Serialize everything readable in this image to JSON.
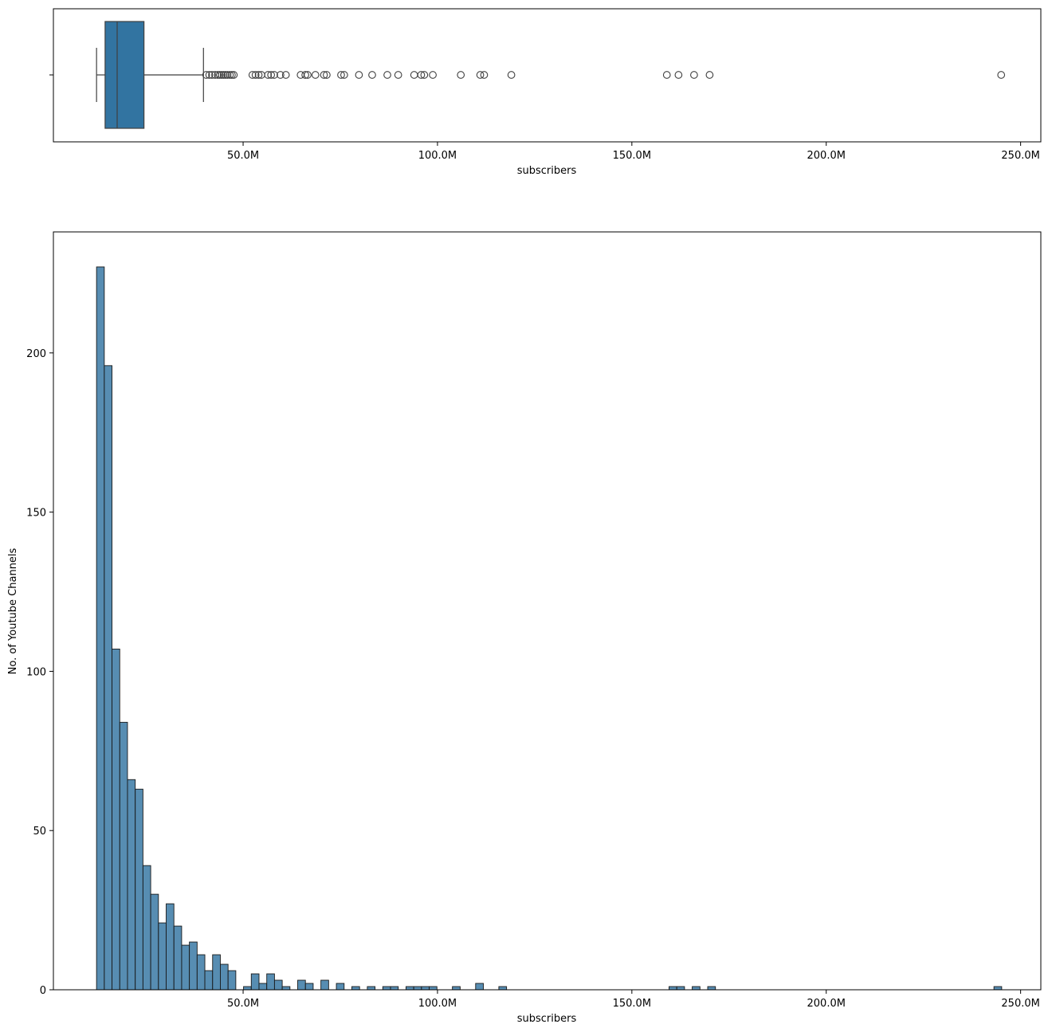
{
  "chart_data": [
    {
      "type": "box",
      "title": "",
      "xlabel": "subscribers",
      "ylabel": "",
      "xlim": [
        1.2,
        255.2
      ],
      "x_ticks": [
        50,
        100,
        150,
        200,
        250
      ],
      "x_tick_labels": [
        "50.0M",
        "100.0M",
        "150.0M",
        "200.0M",
        "250.0M"
      ],
      "y_ticks": [
        0
      ],
      "y_tick_labels": [
        ""
      ],
      "stats": {
        "whisker_low": 12.3,
        "q1": 14.5,
        "median": 17.6,
        "q3": 24.5,
        "whisker_high": 39.8
      },
      "outliers": [
        40.5,
        41.3,
        42.0,
        42.8,
        43.5,
        44.0,
        44.5,
        45.0,
        45.5,
        46.0,
        46.6,
        47.1,
        47.6,
        52.4,
        53.2,
        54.0,
        54.7,
        56.4,
        57.2,
        58.0,
        59.6,
        61.0,
        64.8,
        66.0,
        66.6,
        68.6,
        70.8,
        71.5,
        75.2,
        76.0,
        79.8,
        83.2,
        87.1,
        89.9,
        94.0,
        95.8,
        96.6,
        98.8,
        106.0,
        111.0,
        112.0,
        119.0,
        159.0,
        162.0,
        166.0,
        170.0,
        245.0
      ],
      "color": "#3274a1",
      "grid": false
    },
    {
      "type": "histogram",
      "title": "",
      "xlabel": "subscribers",
      "ylabel": "No. of Youtube Channels",
      "xlim": [
        1.2,
        255.2
      ],
      "ylim": [
        0,
        238
      ],
      "x_ticks": [
        50,
        100,
        150,
        200,
        250
      ],
      "x_tick_labels": [
        "50.0M",
        "100.0M",
        "150.0M",
        "200.0M",
        "250.0M"
      ],
      "y_ticks": [
        0,
        50,
        100,
        150,
        200
      ],
      "y_tick_labels": [
        "0",
        "50",
        "100",
        "150",
        "200"
      ],
      "bin_start": 12.3,
      "bin_width": 1.99,
      "counts": [
        227,
        196,
        107,
        84,
        66,
        63,
        39,
        30,
        21,
        27,
        20,
        14,
        15,
        11,
        6,
        11,
        8,
        6,
        0,
        1,
        5,
        2,
        5,
        3,
        1,
        0,
        3,
        2,
        0,
        3,
        0,
        2,
        0,
        1,
        0,
        1,
        0,
        1,
        1,
        0,
        1,
        1,
        1,
        1,
        0,
        0,
        1,
        0,
        0,
        2,
        0,
        0,
        1,
        0,
        0,
        0,
        0,
        0,
        0,
        0,
        0,
        0,
        0,
        0,
        0,
        0,
        0,
        0,
        0,
        0,
        0,
        0,
        0,
        0,
        1,
        1,
        0,
        1,
        0,
        1,
        0,
        0,
        0,
        0,
        0,
        0,
        0,
        0,
        0,
        0,
        0,
        0,
        0,
        0,
        0,
        0,
        0,
        0,
        0,
        0,
        0,
        0,
        0,
        0,
        0,
        0,
        0,
        0,
        0,
        0,
        0,
        0,
        0,
        0,
        0,
        0,
        1
      ],
      "color": "#3274a1",
      "grid": false
    }
  ]
}
